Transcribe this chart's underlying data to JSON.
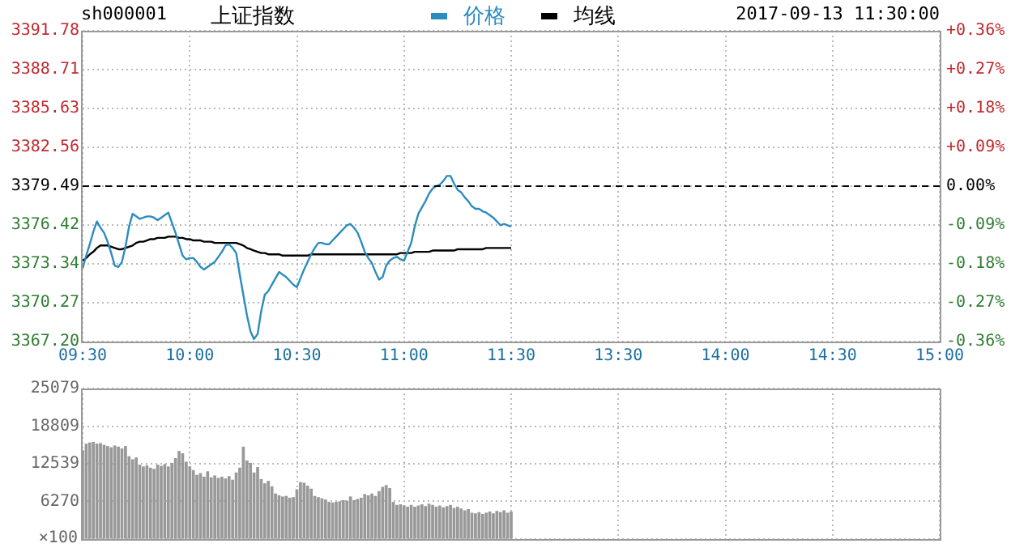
{
  "chart_data": [
    {
      "type": "line",
      "title": "上证指数",
      "subtitle": "sh000001",
      "annotations": [
        "2017-09-13 11:30:00"
      ],
      "legend": "top",
      "grid": true,
      "marker": "none",
      "line_style": "solid",
      "categories": [
        "09:30",
        null,
        null,
        null,
        null,
        null,
        null,
        null,
        null,
        null,
        null,
        null,
        null,
        null,
        null,
        null,
        null,
        null,
        null,
        null,
        null,
        null,
        null,
        null,
        null,
        null,
        null,
        null,
        null,
        null,
        "10:00",
        null,
        null,
        null,
        null,
        null,
        null,
        null,
        null,
        null,
        null,
        null,
        null,
        null,
        null,
        null,
        null,
        null,
        null,
        null,
        null,
        null,
        null,
        null,
        null,
        null,
        null,
        null,
        null,
        null,
        "10:30",
        null,
        null,
        null,
        null,
        null,
        null,
        null,
        null,
        null,
        null,
        null,
        null,
        null,
        null,
        null,
        null,
        null,
        null,
        null,
        null,
        null,
        null,
        null,
        null,
        null,
        null,
        null,
        null,
        null,
        "11:00",
        null,
        null,
        null,
        null,
        null,
        null,
        null,
        null,
        null,
        null,
        null,
        null,
        null,
        null,
        null,
        null,
        null,
        null,
        null,
        null,
        null,
        null,
        null,
        null,
        null,
        null,
        null,
        null,
        null,
        "11:30",
        null,
        null,
        null,
        null,
        null,
        null,
        null,
        null,
        null,
        null,
        null,
        null,
        null,
        null,
        null,
        null,
        null,
        null,
        null,
        null,
        null,
        null,
        null,
        null,
        null,
        null,
        null,
        null,
        null,
        "13:30",
        null,
        null,
        null,
        null,
        null,
        null,
        null,
        null,
        null,
        null,
        null,
        null,
        null,
        null,
        null,
        null,
        null,
        null,
        null,
        null,
        null,
        null,
        null,
        null,
        null,
        null,
        null,
        null,
        null,
        "14:00",
        null,
        null,
        null,
        null,
        null,
        null,
        null,
        null,
        null,
        null,
        null,
        null,
        null,
        null,
        null,
        null,
        null,
        null,
        null,
        null,
        null,
        null,
        null,
        null,
        null,
        null,
        null,
        null,
        null,
        "14:30",
        null,
        null,
        null,
        null,
        null,
        null,
        null,
        null,
        null,
        null,
        null,
        null,
        null,
        null,
        null,
        null,
        null,
        null,
        null,
        null,
        null,
        null,
        null,
        null,
        null,
        null,
        null,
        null,
        null,
        "15:00"
      ],
      "ylim": [
        3367.2,
        3391.78
      ],
      "yticks": [
        {
          "value": 3367.2,
          "label": "3367.20"
        },
        3370.27,
        3373.34,
        3376.42,
        3379.49,
        3382.56,
        3385.63,
        3388.71,
        3391.78
      ],
      "y2lim": [
        -0.36,
        0.36
      ],
      "y2ticks": [
        {
          "value": -0.36,
          "label": "-0.36%"
        },
        {
          "value": -0.27,
          "label": "-0.27%"
        },
        {
          "value": -0.18,
          "label": "-0.18%"
        },
        {
          "value": -0.09,
          "label": "-0.09%"
        },
        {
          "value": 0,
          "label": "0.00%"
        },
        {
          "value": 0.09,
          "label": "+0.09%"
        },
        {
          "value": 0.18,
          "label": "+0.18%"
        },
        {
          "value": 0.27,
          "label": "+0.27%"
        },
        {
          "value": 0.36,
          "label": "+0.36%"
        }
      ],
      "ref_lines": [
        {
          "axis": "y",
          "value": 3379.49,
          "color": "#000000",
          "line_style": "dashed"
        }
      ],
      "series": [
        {
          "name": "价格",
          "color": "#2b8cbe",
          "values": [
            3373.0,
            3374.0,
            3374.9,
            3375.9,
            3376.7,
            3376.2,
            3375.8,
            3375.1,
            3374.2,
            3373.2,
            3373.1,
            3373.5,
            3374.7,
            3376.3,
            3377.3,
            3377.1,
            3376.9,
            3377.0,
            3377.1,
            3377.1,
            3377.0,
            3376.8,
            3377.0,
            3377.2,
            3377.4,
            3376.6,
            3375.8,
            3374.9,
            3374.0,
            3373.7,
            3373.8,
            3373.8,
            3373.5,
            3373.1,
            3372.9,
            3373.1,
            3373.3,
            3373.5,
            3373.9,
            3374.3,
            3374.8,
            3374.9,
            3374.6,
            3374.2,
            3372.5,
            3370.9,
            3369.3,
            3368.0,
            3367.4,
            3367.8,
            3369.6,
            3370.9,
            3371.2,
            3371.7,
            3372.2,
            3372.7,
            3372.5,
            3372.3,
            3372.0,
            3371.7,
            3371.5,
            3372.2,
            3372.9,
            3373.5,
            3374.1,
            3374.6,
            3375.0,
            3375.0,
            3374.9,
            3374.9,
            3375.2,
            3375.5,
            3375.8,
            3376.1,
            3376.4,
            3376.5,
            3376.2,
            3375.8,
            3375.1,
            3374.3,
            3373.8,
            3373.4,
            3372.7,
            3372.1,
            3372.3,
            3373.2,
            3373.6,
            3373.8,
            3373.9,
            3373.7,
            3373.6,
            3374.3,
            3375.0,
            3376.3,
            3377.3,
            3377.8,
            3378.3,
            3378.9,
            3379.3,
            3379.5,
            3379.6,
            3379.9,
            3380.3,
            3380.3,
            3379.7,
            3379.2,
            3379.0,
            3378.6,
            3378.3,
            3377.9,
            3377.7,
            3377.7,
            3377.5,
            3377.4,
            3377.2,
            3377.0,
            3376.7,
            3376.4,
            3376.5,
            3376.4,
            3376.3,
            null,
            null,
            null,
            null,
            null,
            null,
            null,
            null,
            null,
            null,
            null,
            null,
            null,
            null,
            null,
            null,
            null,
            null,
            null,
            null,
            null,
            null,
            null,
            null,
            null,
            null,
            null,
            null,
            null,
            null,
            null,
            null,
            null,
            null,
            null,
            null,
            null,
            null,
            null,
            null,
            null,
            null,
            null,
            null,
            null,
            null,
            null,
            null,
            null,
            null,
            null,
            null,
            null,
            null,
            null,
            null,
            null,
            null,
            null,
            null,
            null,
            null,
            null,
            null,
            null,
            null,
            null,
            null,
            null,
            null,
            null,
            null,
            null,
            null,
            null,
            null,
            null,
            null,
            null,
            null,
            null,
            null,
            null,
            null,
            null,
            null,
            null,
            null,
            null,
            null,
            null,
            null,
            null,
            null,
            null,
            null,
            null,
            null,
            null,
            null,
            null,
            null,
            null,
            null,
            null,
            null,
            null,
            null,
            null,
            null,
            null,
            null,
            null,
            null,
            null,
            null,
            null,
            null,
            null,
            null
          ]
        },
        {
          "name": "均线",
          "color": "#000000",
          "values": [
            3373.6,
            3373.8,
            3374.1,
            3374.3,
            3374.6,
            3374.8,
            3374.8,
            3374.8,
            3374.7,
            3374.6,
            3374.5,
            3374.5,
            3374.6,
            3374.7,
            3374.8,
            3375.0,
            3375.1,
            3375.1,
            3375.2,
            3375.3,
            3375.3,
            3375.4,
            3375.4,
            3375.4,
            3375.5,
            3375.5,
            3375.5,
            3375.4,
            3375.4,
            3375.3,
            3375.3,
            3375.2,
            3375.2,
            3375.2,
            3375.1,
            3375.1,
            3375.1,
            3375.0,
            3375.0,
            3375.0,
            3375.0,
            3375.0,
            3375.0,
            3375.0,
            3374.9,
            3374.8,
            3374.6,
            3374.5,
            3374.4,
            3374.3,
            3374.2,
            3374.2,
            3374.1,
            3374.1,
            3374.1,
            3374.1,
            3374.0,
            3374.0,
            3374.0,
            3374.0,
            3374.0,
            3374.0,
            3374.0,
            3374.0,
            3374.1,
            3374.1,
            3374.1,
            3374.1,
            3374.1,
            3374.1,
            3374.1,
            3374.1,
            3374.1,
            3374.1,
            3374.1,
            3374.1,
            3374.1,
            3374.1,
            3374.1,
            3374.1,
            3374.1,
            3374.1,
            3374.1,
            3374.1,
            3374.1,
            3374.1,
            3374.1,
            3374.1,
            3374.1,
            3374.2,
            3374.2,
            3374.2,
            3374.2,
            3374.3,
            3374.3,
            3374.3,
            3374.3,
            3374.3,
            3374.4,
            3374.4,
            3374.4,
            3374.4,
            3374.4,
            3374.4,
            3374.4,
            3374.5,
            3374.5,
            3374.5,
            3374.5,
            3374.5,
            3374.5,
            3374.5,
            3374.5,
            3374.6,
            3374.6,
            3374.6,
            3374.6,
            3374.6,
            3374.6,
            3374.6,
            3374.6,
            null,
            null,
            null,
            null,
            null,
            null,
            null,
            null,
            null,
            null,
            null,
            null,
            null,
            null,
            null,
            null,
            null,
            null,
            null,
            null,
            null,
            null,
            null,
            null,
            null,
            null,
            null,
            null,
            null,
            null,
            null,
            null,
            null,
            null,
            null,
            null,
            null,
            null,
            null,
            null,
            null,
            null,
            null,
            null,
            null,
            null,
            null,
            null,
            null,
            null,
            null,
            null,
            null,
            null,
            null,
            null,
            null,
            null,
            null,
            null,
            null,
            null,
            null,
            null,
            null,
            null,
            null,
            null,
            null,
            null,
            null,
            null,
            null,
            null,
            null,
            null,
            null,
            null,
            null,
            null,
            null,
            null,
            null,
            null,
            null,
            null,
            null,
            null,
            null,
            null,
            null,
            null,
            null,
            null,
            null,
            null,
            null,
            null,
            null,
            null,
            null,
            null,
            null,
            null,
            null,
            null,
            null,
            null,
            null,
            null,
            null,
            null,
            null,
            null,
            null,
            null,
            null,
            null,
            null,
            null
          ]
        }
      ]
    },
    {
      "type": "bar",
      "grid": true,
      "tick_labels": "y",
      "color": "#999999",
      "ylabel": "×100",
      "categories": [
        null,
        null,
        null,
        null,
        null,
        null,
        null,
        null,
        null,
        null,
        null,
        null,
        null,
        null,
        null,
        null,
        null,
        null,
        null,
        null,
        null,
        null,
        null,
        null,
        null,
        null,
        null,
        null,
        null,
        null,
        null,
        null,
        null,
        null,
        null,
        null,
        null,
        null,
        null,
        null,
        null,
        null,
        null,
        null,
        null,
        null,
        null,
        null,
        null,
        null,
        null,
        null,
        null,
        null,
        null,
        null,
        null,
        null,
        null,
        null,
        null,
        null,
        null,
        null,
        null,
        null,
        null,
        null,
        null,
        null,
        null,
        null,
        null,
        null,
        null,
        null,
        null,
        null,
        null,
        null,
        null,
        null,
        null,
        null,
        null,
        null,
        null,
        null,
        null,
        null,
        null,
        null,
        null,
        null,
        null,
        null,
        null,
        null,
        null,
        null,
        null,
        null,
        null,
        null,
        null,
        null,
        null,
        null,
        null,
        null,
        null,
        null,
        null,
        null,
        null,
        null,
        null,
        null,
        null,
        null,
        null,
        null,
        null,
        null,
        null,
        null,
        null,
        null,
        null,
        null,
        null,
        null,
        null,
        null,
        null,
        null,
        null,
        null,
        null,
        null,
        null,
        null,
        null,
        null,
        null,
        null,
        null,
        null,
        null,
        null,
        null,
        null,
        null,
        null,
        null,
        null,
        null,
        null,
        null,
        null,
        null,
        null,
        null,
        null,
        null,
        null,
        null,
        null,
        null,
        null,
        null,
        null,
        null,
        null,
        null,
        null,
        null,
        null,
        null,
        null,
        null,
        null,
        null,
        null,
        null,
        null,
        null,
        null,
        null,
        null,
        null,
        null,
        null,
        null,
        null,
        null,
        null,
        null,
        null,
        null,
        null,
        null,
        null,
        null,
        null,
        null,
        null,
        null,
        null,
        null,
        null,
        null,
        null,
        null,
        null,
        null,
        null,
        null,
        null,
        null,
        null,
        null,
        null,
        null,
        null,
        null,
        null,
        null,
        null,
        null,
        null,
        null,
        null,
        null,
        null,
        null,
        null,
        null,
        null,
        null,
        null
      ],
      "ylim": [
        0,
        25079
      ],
      "yticks": [
        {
          "value": 0,
          "label": null
        },
        6270,
        12539,
        18809,
        25079
      ],
      "values": [
        14700,
        15800,
        16000,
        16100,
        15800,
        15900,
        15600,
        15400,
        15200,
        15500,
        15300,
        15000,
        15400,
        13700,
        13200,
        13500,
        12300,
        12000,
        12200,
        11800,
        11600,
        12300,
        12100,
        12400,
        12000,
        12600,
        13400,
        14600,
        14200,
        12800,
        12000,
        11400,
        10600,
        10900,
        10300,
        11200,
        10200,
        10500,
        10100,
        10300,
        10000,
        10400,
        9800,
        11000,
        11800,
        15300,
        13000,
        12600,
        11000,
        11900,
        9900,
        9200,
        9600,
        8700,
        7500,
        7200,
        7000,
        7100,
        6800,
        6900,
        8200,
        9400,
        9300,
        8800,
        8300,
        7100,
        6900,
        6700,
        6500,
        6100,
        6000,
        6100,
        6200,
        6400,
        6300,
        7000,
        6400,
        6600,
        6800,
        7400,
        7200,
        7500,
        7100,
        7900,
        8600,
        8900,
        8400,
        6100,
        5600,
        5700,
        5500,
        5300,
        5600,
        5300,
        5500,
        5700,
        5400,
        5800,
        5600,
        5300,
        5500,
        5200,
        5400,
        5600,
        5100,
        5300,
        5000,
        4700,
        4900,
        4300,
        4200,
        4400,
        4100,
        4300,
        4500,
        4200,
        4600,
        4400,
        4700,
        4300,
        4500,
        null,
        null,
        null,
        null,
        null,
        null,
        null,
        null,
        null,
        null,
        null,
        null,
        null,
        null,
        null,
        null,
        null,
        null,
        null,
        null,
        null,
        null,
        null,
        null,
        null,
        null,
        null,
        null,
        null,
        null,
        null,
        null,
        null,
        null,
        null,
        null,
        null,
        null,
        null,
        null,
        null,
        null,
        null,
        null,
        null,
        null,
        null,
        null,
        null,
        null,
        null,
        null,
        null,
        null,
        null,
        null,
        null,
        null,
        null,
        null,
        null,
        null,
        null,
        null,
        null,
        null,
        null,
        null,
        null,
        null,
        null,
        null,
        null,
        null,
        null,
        null,
        null,
        null,
        null,
        null,
        null,
        null,
        null,
        null,
        null,
        null,
        null,
        null,
        null,
        null,
        null,
        null,
        null,
        null,
        null,
        null,
        null,
        null,
        null,
        null,
        null,
        null,
        null,
        null,
        null,
        null,
        null,
        null,
        null,
        null,
        null,
        null,
        null,
        null,
        null,
        null,
        null,
        null,
        null,
        null
      ]
    }
  ]
}
